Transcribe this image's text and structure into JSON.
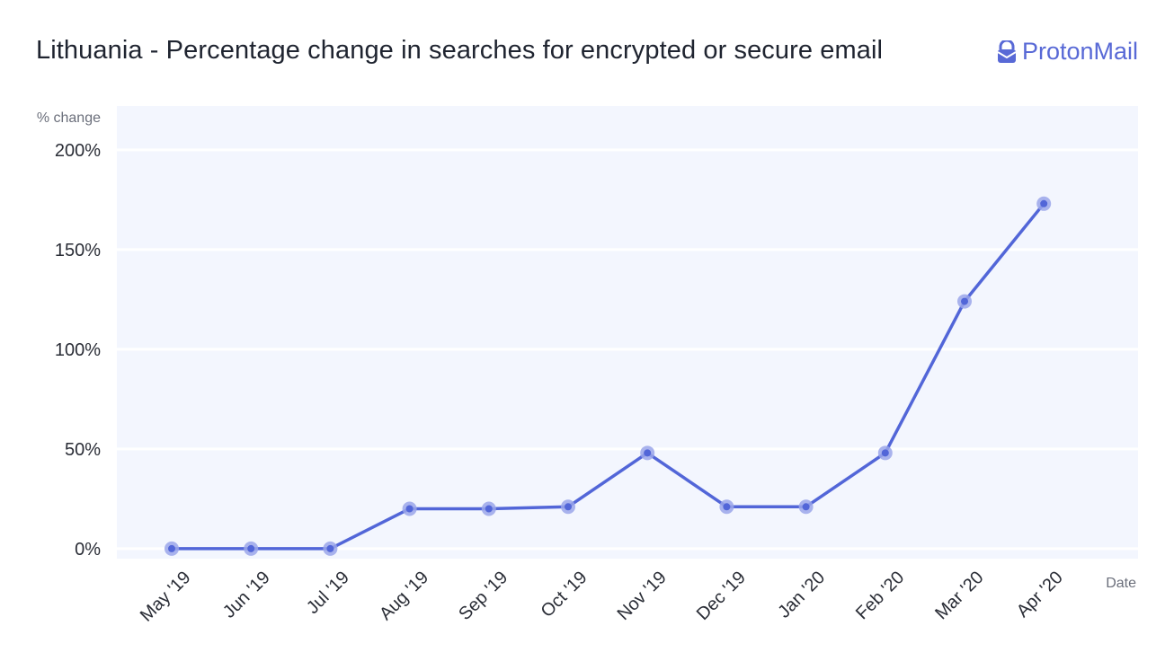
{
  "header": {
    "title": "Lithuania - Percentage change in searches for encrypted or secure email",
    "brand": "ProtonMail"
  },
  "colors": {
    "line": "#5266d8",
    "marker_halo": "#9aa6ea",
    "plot_bg": "#f3f6fe",
    "grid": "#ffffff",
    "brand": "#5869d6"
  },
  "icons": {
    "brand_logo": "lock-icon"
  },
  "chart_data": {
    "type": "line",
    "ylabel": "% change",
    "xlabel": "Date",
    "ylim": [
      -5,
      222
    ],
    "yticks": [
      0,
      50,
      100,
      150,
      200
    ],
    "ytick_labels": [
      "0%",
      "50%",
      "100%",
      "150%",
      "200%"
    ],
    "categories": [
      "May '19",
      "Jun '19",
      "Jul '19",
      "Aug '19",
      "Sep '19",
      "Oct '19",
      "Nov '19",
      "Dec '19",
      "Jan '20",
      "Feb '20",
      "Mar '20",
      "Apr '20"
    ],
    "series": [
      {
        "values": [
          0,
          0,
          0,
          20,
          20,
          21,
          48,
          21,
          21,
          48,
          124,
          173
        ]
      }
    ],
    "grid": true,
    "legend": "none"
  }
}
